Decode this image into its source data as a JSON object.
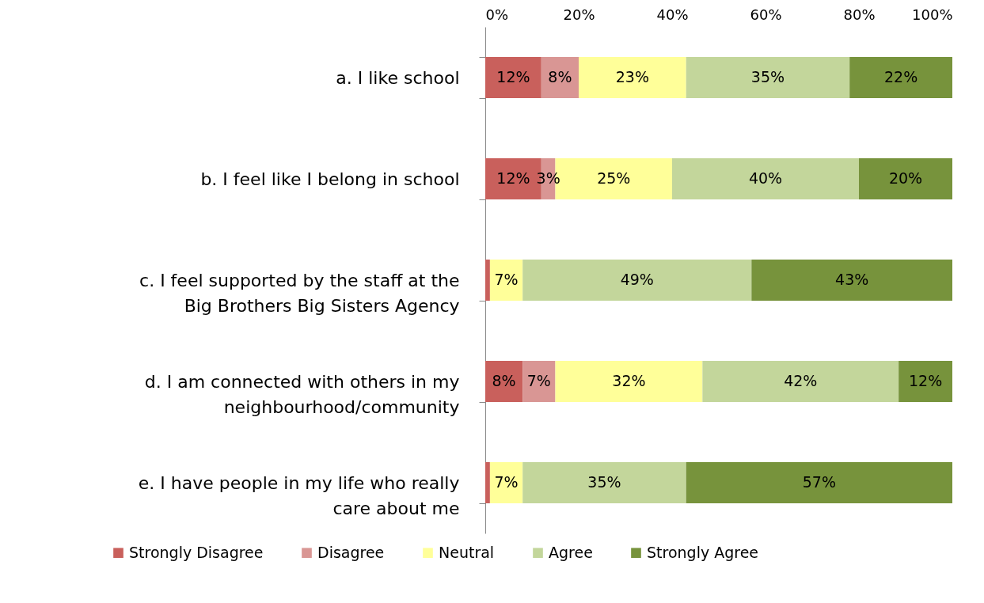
{
  "chart_data": {
    "type": "bar",
    "orientation": "horizontal",
    "stacked": true,
    "legend": "bottom",
    "grid": false,
    "categories": [
      "a.     I like school",
      "b.     I feel like I belong in school",
      "c.     I feel supported by the staff at the Big Brothers Big Sisters Agency",
      "d.     I am connected with others in my neighbourhood/community",
      "e.     I have people in my life who really care about me"
    ],
    "xlim": [
      0,
      100
    ],
    "xticks": [
      {
        "value": 0,
        "label": "0%"
      },
      {
        "value": 20,
        "label": "20%"
      },
      {
        "value": 40,
        "label": "40%"
      },
      {
        "value": 60,
        "label": "60%"
      },
      {
        "value": 80,
        "label": "80%"
      },
      {
        "value": 100,
        "label": "100%"
      }
    ],
    "series": [
      {
        "name": "Strongly Disagree",
        "color": "#c9605c",
        "values": [
          12,
          12,
          1,
          8,
          1
        ],
        "value_labels": [
          "12%",
          "12%",
          null,
          "8%",
          null
        ]
      },
      {
        "name": "Disagree",
        "color": "#d99694",
        "values": [
          8,
          3,
          null,
          7,
          null
        ],
        "value_labels": [
          "8%",
          "3%",
          null,
          "7%",
          null
        ]
      },
      {
        "name": "Neutral",
        "color": "#ffff99",
        "values": [
          23,
          25,
          7,
          31.5,
          7
        ],
        "value_labels": [
          "23%",
          "25%",
          "7%",
          "32%",
          "7%"
        ]
      },
      {
        "name": "Agree",
        "color": "#c3d69b",
        "values": [
          35,
          40,
          49,
          42,
          35
        ],
        "value_labels": [
          "35%",
          "40%",
          "49%",
          "42%",
          "35%"
        ]
      },
      {
        "name": "Strongly Agree",
        "color": "#77933c",
        "values": [
          22,
          20,
          43,
          11.5,
          57
        ],
        "value_labels": [
          "22%",
          "20%",
          "43%",
          "12%",
          "57%"
        ]
      }
    ]
  }
}
